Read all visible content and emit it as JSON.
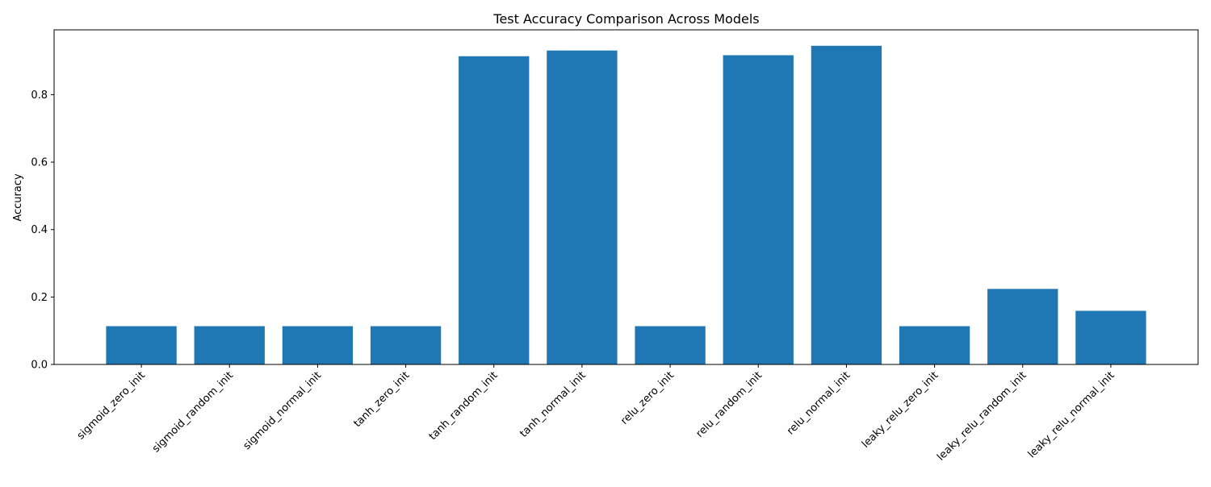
{
  "chart_data": {
    "type": "bar",
    "title": "Test Accuracy Comparison Across Models",
    "xlabel": "",
    "ylabel": "Accuracy",
    "categories": [
      "sigmoid_zero_init",
      "sigmoid_random_init",
      "sigmoid_normal_init",
      "tanh_zero_init",
      "tanh_random_init",
      "tanh_normal_init",
      "relu_zero_init",
      "relu_random_init",
      "relu_normal_init",
      "leaky_relu_zero_init",
      "leaky_relu_random_init",
      "leaky_relu_normal_init"
    ],
    "values": [
      0.1135,
      0.1135,
      0.1135,
      0.1135,
      0.914,
      0.931,
      0.1135,
      0.917,
      0.945,
      0.1135,
      0.224,
      0.159
    ],
    "ylim": [
      0,
      0.9923
    ],
    "yticks": [
      0.0,
      0.2,
      0.4,
      0.6,
      0.8
    ],
    "ytick_labels": [
      "0.0",
      "0.2",
      "0.4",
      "0.6",
      "0.8"
    ],
    "grid": false,
    "bar_color": "#1f77b4"
  }
}
